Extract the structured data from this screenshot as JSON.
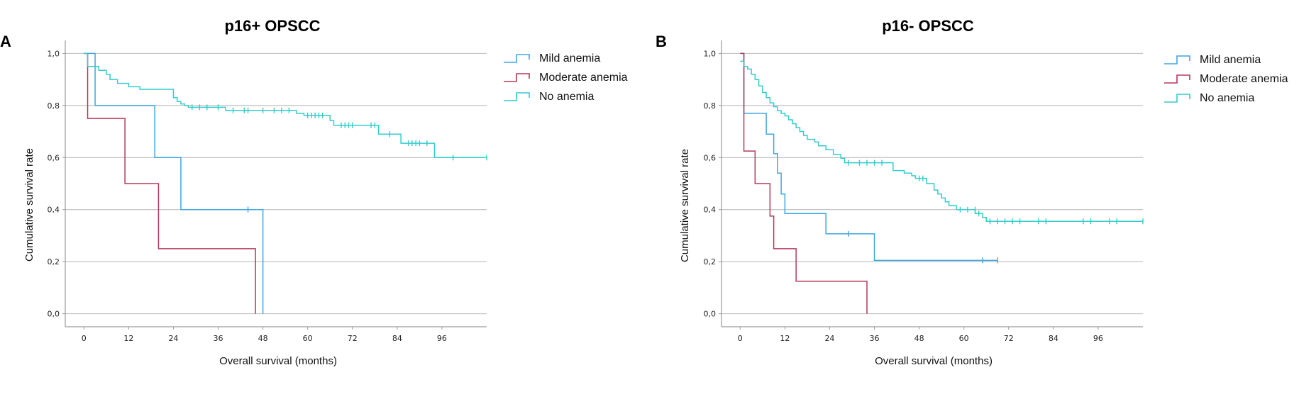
{
  "colors": {
    "mild": "#3fa6e0",
    "moderate": "#b5395a",
    "none": "#35cccc",
    "grid": "#bdbdbd",
    "axis": "#9a9a9a"
  },
  "chart_data": [
    {
      "type": "line",
      "subtype": "kaplan-meier",
      "panel_label": "A",
      "title": "p16+ OPSCC",
      "xlabel": "Overall survival (months)",
      "ylabel": "Cumulative survival rate",
      "xlim": [
        -5,
        108
      ],
      "ylim": [
        -0.05,
        1.05
      ],
      "xticks": [
        0,
        12,
        24,
        36,
        48,
        60,
        72,
        84,
        96
      ],
      "xtick_labels": [
        "0",
        "12",
        "24",
        "36",
        "48",
        "60",
        "72",
        "84",
        "96"
      ],
      "yticks": [
        0,
        0.2,
        0.4,
        0.6,
        0.8,
        1.0
      ],
      "ytick_labels": [
        "0,0",
        "0,2",
        "0,4",
        "0,6",
        "0,8",
        "1,0"
      ],
      "grid": "horizontal",
      "legend": "top-right",
      "series": [
        {
          "name": "Mild anemia",
          "color_key": "mild",
          "steps": [
            [
              0,
              1.0
            ],
            [
              3,
              0.8
            ],
            [
              19,
              0.6
            ],
            [
              26,
              0.4
            ],
            [
              48,
              0.0
            ]
          ],
          "censored": [
            [
              44,
              0.4
            ]
          ]
        },
        {
          "name": "Moderate anemia",
          "color_key": "moderate",
          "steps": [
            [
              0,
              1.0
            ],
            [
              1,
              0.75
            ],
            [
              11,
              0.5
            ],
            [
              20,
              0.25
            ],
            [
              46,
              0.0
            ]
          ],
          "censored": []
        },
        {
          "name": "No anemia",
          "color_key": "none",
          "steps": [
            [
              0,
              1.0
            ],
            [
              1,
              0.95
            ],
            [
              4,
              0.935
            ],
            [
              6,
              0.92
            ],
            [
              7,
              0.9
            ],
            [
              9,
              0.885
            ],
            [
              12,
              0.872
            ],
            [
              15,
              0.862
            ],
            [
              24,
              0.83
            ],
            [
              25,
              0.815
            ],
            [
              26,
              0.806
            ],
            [
              27,
              0.8
            ],
            [
              28,
              0.793
            ],
            [
              38,
              0.781
            ],
            [
              57,
              0.77
            ],
            [
              59,
              0.762
            ],
            [
              66,
              0.742
            ],
            [
              67,
              0.724
            ],
            [
              79,
              0.69
            ],
            [
              85,
              0.655
            ],
            [
              94,
              0.6
            ]
          ],
          "censored": [
            [
              29,
              0.793
            ],
            [
              31,
              0.793
            ],
            [
              33,
              0.793
            ],
            [
              36,
              0.793
            ],
            [
              40,
              0.781
            ],
            [
              43,
              0.781
            ],
            [
              44,
              0.781
            ],
            [
              48,
              0.781
            ],
            [
              51,
              0.781
            ],
            [
              53,
              0.781
            ],
            [
              55,
              0.781
            ],
            [
              60,
              0.762
            ],
            [
              61,
              0.762
            ],
            [
              62,
              0.762
            ],
            [
              63,
              0.762
            ],
            [
              64,
              0.762
            ],
            [
              69,
              0.724
            ],
            [
              70,
              0.724
            ],
            [
              71,
              0.724
            ],
            [
              72,
              0.724
            ],
            [
              77,
              0.724
            ],
            [
              78,
              0.724
            ],
            [
              82,
              0.69
            ],
            [
              87,
              0.655
            ],
            [
              88,
              0.655
            ],
            [
              89,
              0.655
            ],
            [
              90,
              0.655
            ],
            [
              92,
              0.655
            ],
            [
              99,
              0.6
            ],
            [
              108,
              0.6
            ]
          ]
        }
      ]
    },
    {
      "type": "line",
      "subtype": "kaplan-meier",
      "panel_label": "B",
      "title": "p16- OPSCC",
      "xlabel": "Overall survival (months)",
      "ylabel": "Cumulative survival rate",
      "xlim": [
        -5,
        108
      ],
      "ylim": [
        -0.05,
        1.05
      ],
      "xticks": [
        0,
        12,
        24,
        36,
        48,
        60,
        72,
        84,
        96
      ],
      "xtick_labels": [
        "0",
        "12",
        "24",
        "36",
        "48",
        "60",
        "72",
        "84",
        "96"
      ],
      "yticks": [
        0,
        0.2,
        0.4,
        0.6,
        0.8,
        1.0
      ],
      "ytick_labels": [
        "0,0",
        "0,2",
        "0,4",
        "0,6",
        "0,8",
        "1,0"
      ],
      "grid": "horizontal",
      "legend": "top-right",
      "series": [
        {
          "name": "Mild anemia",
          "color_key": "mild",
          "steps": [
            [
              0,
              1.0
            ],
            [
              1,
              0.77
            ],
            [
              7,
              0.69
            ],
            [
              9,
              0.615
            ],
            [
              10,
              0.54
            ],
            [
              11,
              0.46
            ],
            [
              12,
              0.385
            ],
            [
              23,
              0.307
            ],
            [
              36,
              0.205
            ]
          ],
          "censored": [
            [
              29,
              0.307
            ],
            [
              65,
              0.205
            ],
            [
              69,
              0.205
            ]
          ]
        },
        {
          "name": "Moderate anemia",
          "color_key": "moderate",
          "steps": [
            [
              0,
              1.0
            ],
            [
              1,
              0.625
            ],
            [
              4,
              0.5
            ],
            [
              8,
              0.375
            ],
            [
              9,
              0.25
            ],
            [
              15,
              0.125
            ],
            [
              34,
              0.0
            ]
          ],
          "censored": []
        },
        {
          "name": "No anemia",
          "color_key": "none",
          "steps": [
            [
              0,
              0.97
            ],
            [
              1,
              0.95
            ],
            [
              2,
              0.94
            ],
            [
              3,
              0.92
            ],
            [
              4,
              0.9
            ],
            [
              5,
              0.875
            ],
            [
              6,
              0.85
            ],
            [
              7,
              0.83
            ],
            [
              8,
              0.81
            ],
            [
              9,
              0.795
            ],
            [
              10,
              0.78
            ],
            [
              11,
              0.77
            ],
            [
              12,
              0.76
            ],
            [
              13,
              0.745
            ],
            [
              14,
              0.73
            ],
            [
              15,
              0.715
            ],
            [
              16,
              0.7
            ],
            [
              17,
              0.685
            ],
            [
              18,
              0.67
            ],
            [
              20,
              0.66
            ],
            [
              21,
              0.645
            ],
            [
              23,
              0.63
            ],
            [
              25,
              0.612
            ],
            [
              27,
              0.597
            ],
            [
              28,
              0.58
            ],
            [
              41,
              0.55
            ],
            [
              44,
              0.54
            ],
            [
              46,
              0.53
            ],
            [
              47,
              0.52
            ],
            [
              50,
              0.5
            ],
            [
              52,
              0.475
            ],
            [
              53,
              0.46
            ],
            [
              54,
              0.445
            ],
            [
              55,
              0.43
            ],
            [
              56,
              0.415
            ],
            [
              58,
              0.4
            ],
            [
              63,
              0.385
            ],
            [
              65,
              0.37
            ],
            [
              66,
              0.355
            ]
          ],
          "censored": [
            [
              29,
              0.58
            ],
            [
              32,
              0.58
            ],
            [
              34,
              0.58
            ],
            [
              36,
              0.58
            ],
            [
              38,
              0.58
            ],
            [
              48,
              0.52
            ],
            [
              49,
              0.52
            ],
            [
              59,
              0.4
            ],
            [
              61,
              0.4
            ],
            [
              63,
              0.4
            ],
            [
              64,
              0.385
            ],
            [
              67,
              0.355
            ],
            [
              69,
              0.355
            ],
            [
              71,
              0.355
            ],
            [
              73,
              0.355
            ],
            [
              75,
              0.355
            ],
            [
              80,
              0.355
            ],
            [
              82,
              0.355
            ],
            [
              92,
              0.355
            ],
            [
              94,
              0.355
            ],
            [
              99,
              0.355
            ],
            [
              101,
              0.355
            ],
            [
              108,
              0.355
            ]
          ]
        }
      ]
    }
  ]
}
